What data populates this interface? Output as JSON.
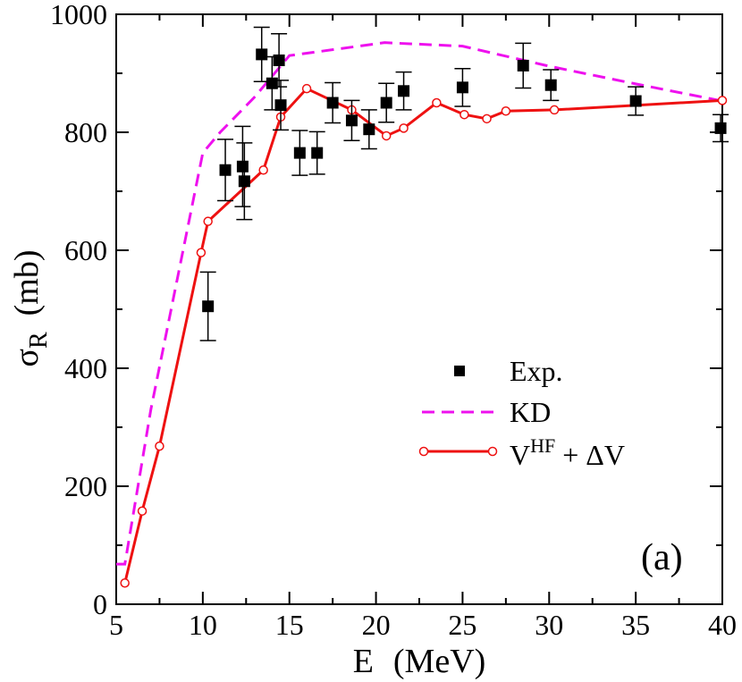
{
  "chart_data": {
    "type": "line",
    "panel_label": "(a)",
    "xlabel": {
      "main": "E",
      "unit": "(MeV)"
    },
    "ylabel": {
      "symbol": "σ",
      "subscript": "R",
      "unit": "(mb)"
    },
    "xlim": [
      5,
      40
    ],
    "ylim": [
      0,
      1000
    ],
    "xticks": [
      5,
      10,
      15,
      20,
      25,
      30,
      35,
      40
    ],
    "yticks": [
      0,
      200,
      400,
      600,
      800,
      1000
    ],
    "legend_position": "center-right",
    "series": [
      {
        "name": "Exp.",
        "style": "square-markers-with-errorbars",
        "color": "#000000",
        "points": [
          {
            "x": 10.3,
            "y": 505,
            "err": 58
          },
          {
            "x": 11.3,
            "y": 736,
            "err": 52
          },
          {
            "x": 12.3,
            "y": 742,
            "err": 68
          },
          {
            "x": 12.4,
            "y": 717,
            "err": 65
          },
          {
            "x": 13.4,
            "y": 932,
            "err": 46
          },
          {
            "x": 14.0,
            "y": 883,
            "err": 45
          },
          {
            "x": 14.4,
            "y": 922,
            "err": 45
          },
          {
            "x": 14.5,
            "y": 846,
            "err": 42
          },
          {
            "x": 15.6,
            "y": 765,
            "err": 38
          },
          {
            "x": 16.6,
            "y": 765,
            "err": 36
          },
          {
            "x": 17.5,
            "y": 850,
            "err": 34
          },
          {
            "x": 18.6,
            "y": 820,
            "err": 34
          },
          {
            "x": 19.6,
            "y": 805,
            "err": 33
          },
          {
            "x": 20.6,
            "y": 850,
            "err": 33
          },
          {
            "x": 21.6,
            "y": 870,
            "err": 32
          },
          {
            "x": 25.0,
            "y": 876,
            "err": 32
          },
          {
            "x": 28.5,
            "y": 913,
            "err": 38
          },
          {
            "x": 30.1,
            "y": 880,
            "err": 26
          },
          {
            "x": 35.0,
            "y": 853,
            "err": 24
          },
          {
            "x": 39.9,
            "y": 807,
            "err": 23
          }
        ]
      },
      {
        "name": "KD",
        "style": "dashed-line",
        "color": "#ee11ee",
        "points": [
          {
            "x": 5.0,
            "y": 68
          },
          {
            "x": 5.5,
            "y": 68
          },
          {
            "x": 7.0,
            "y": 330
          },
          {
            "x": 10.0,
            "y": 765
          },
          {
            "x": 11.0,
            "y": 800
          },
          {
            "x": 13.0,
            "y": 860
          },
          {
            "x": 15.0,
            "y": 930
          },
          {
            "x": 20.5,
            "y": 952
          },
          {
            "x": 25.0,
            "y": 946
          },
          {
            "x": 30.0,
            "y": 912
          },
          {
            "x": 35.0,
            "y": 882
          },
          {
            "x": 40.0,
            "y": 853
          }
        ]
      },
      {
        "name": "V^HF + ΔV",
        "legend_parts": {
          "base": "V",
          "sup": "HF",
          "rest": " + ΔV"
        },
        "style": "solid-line-open-circles",
        "color": "#ee1111",
        "points": [
          {
            "x": 5.5,
            "y": 36
          },
          {
            "x": 6.5,
            "y": 158
          },
          {
            "x": 7.5,
            "y": 268
          },
          {
            "x": 9.9,
            "y": 596
          },
          {
            "x": 10.3,
            "y": 649
          },
          {
            "x": 13.5,
            "y": 736
          },
          {
            "x": 14.5,
            "y": 826
          },
          {
            "x": 16.0,
            "y": 874
          },
          {
            "x": 18.6,
            "y": 838
          },
          {
            "x": 20.6,
            "y": 794
          },
          {
            "x": 21.6,
            "y": 807
          },
          {
            "x": 23.5,
            "y": 850
          },
          {
            "x": 25.1,
            "y": 830
          },
          {
            "x": 26.4,
            "y": 823
          },
          {
            "x": 27.5,
            "y": 836
          },
          {
            "x": 30.3,
            "y": 838
          },
          {
            "x": 40.0,
            "y": 854
          }
        ]
      }
    ]
  }
}
